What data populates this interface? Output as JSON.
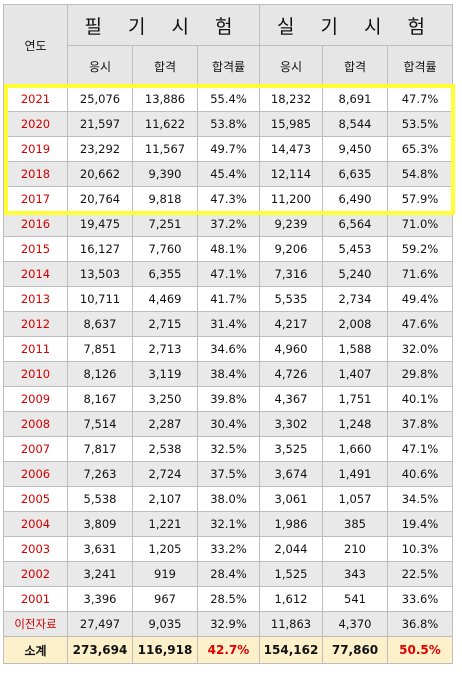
{
  "header": {
    "year": "연도",
    "written": "필 기 시 험",
    "practical": "실 기 시 험",
    "sub": [
      "응시",
      "합격",
      "합격률",
      "응시",
      "합격",
      "합격률"
    ]
  },
  "rows": [
    {
      "year": "2021",
      "w_apply": "25,076",
      "w_pass": "13,886",
      "w_rate": "55.4%",
      "p_apply": "18,232",
      "p_pass": "8,691",
      "p_rate": "47.7%"
    },
    {
      "year": "2020",
      "w_apply": "21,597",
      "w_pass": "11,622",
      "w_rate": "53.8%",
      "p_apply": "15,985",
      "p_pass": "8,544",
      "p_rate": "53.5%"
    },
    {
      "year": "2019",
      "w_apply": "23,292",
      "w_pass": "11,567",
      "w_rate": "49.7%",
      "p_apply": "14,473",
      "p_pass": "9,450",
      "p_rate": "65.3%"
    },
    {
      "year": "2018",
      "w_apply": "20,662",
      "w_pass": "9,390",
      "w_rate": "45.4%",
      "p_apply": "12,114",
      "p_pass": "6,635",
      "p_rate": "54.8%"
    },
    {
      "year": "2017",
      "w_apply": "20,764",
      "w_pass": "9,818",
      "w_rate": "47.3%",
      "p_apply": "11,200",
      "p_pass": "6,490",
      "p_rate": "57.9%"
    },
    {
      "year": "2016",
      "w_apply": "19,475",
      "w_pass": "7,251",
      "w_rate": "37.2%",
      "p_apply": "9,239",
      "p_pass": "6,564",
      "p_rate": "71.0%"
    },
    {
      "year": "2015",
      "w_apply": "16,127",
      "w_pass": "7,760",
      "w_rate": "48.1%",
      "p_apply": "9,206",
      "p_pass": "5,453",
      "p_rate": "59.2%"
    },
    {
      "year": "2014",
      "w_apply": "13,503",
      "w_pass": "6,355",
      "w_rate": "47.1%",
      "p_apply": "7,316",
      "p_pass": "5,240",
      "p_rate": "71.6%"
    },
    {
      "year": "2013",
      "w_apply": "10,711",
      "w_pass": "4,469",
      "w_rate": "41.7%",
      "p_apply": "5,535",
      "p_pass": "2,734",
      "p_rate": "49.4%"
    },
    {
      "year": "2012",
      "w_apply": "8,637",
      "w_pass": "2,715",
      "w_rate": "31.4%",
      "p_apply": "4,217",
      "p_pass": "2,008",
      "p_rate": "47.6%"
    },
    {
      "year": "2011",
      "w_apply": "7,851",
      "w_pass": "2,713",
      "w_rate": "34.6%",
      "p_apply": "4,960",
      "p_pass": "1,588",
      "p_rate": "32.0%"
    },
    {
      "year": "2010",
      "w_apply": "8,126",
      "w_pass": "3,119",
      "w_rate": "38.4%",
      "p_apply": "4,726",
      "p_pass": "1,407",
      "p_rate": "29.8%"
    },
    {
      "year": "2009",
      "w_apply": "8,167",
      "w_pass": "3,250",
      "w_rate": "39.8%",
      "p_apply": "4,367",
      "p_pass": "1,751",
      "p_rate": "40.1%"
    },
    {
      "year": "2008",
      "w_apply": "7,514",
      "w_pass": "2,287",
      "w_rate": "30.4%",
      "p_apply": "3,302",
      "p_pass": "1,248",
      "p_rate": "37.8%"
    },
    {
      "year": "2007",
      "w_apply": "7,817",
      "w_pass": "2,538",
      "w_rate": "32.5%",
      "p_apply": "3,525",
      "p_pass": "1,660",
      "p_rate": "47.1%"
    },
    {
      "year": "2006",
      "w_apply": "7,263",
      "w_pass": "2,724",
      "w_rate": "37.5%",
      "p_apply": "3,674",
      "p_pass": "1,491",
      "p_rate": "40.6%"
    },
    {
      "year": "2005",
      "w_apply": "5,538",
      "w_pass": "2,107",
      "w_rate": "38.0%",
      "p_apply": "3,061",
      "p_pass": "1,057",
      "p_rate": "34.5%"
    },
    {
      "year": "2004",
      "w_apply": "3,809",
      "w_pass": "1,221",
      "w_rate": "32.1%",
      "p_apply": "1,986",
      "p_pass": "385",
      "p_rate": "19.4%"
    },
    {
      "year": "2003",
      "w_apply": "3,631",
      "w_pass": "1,205",
      "w_rate": "33.2%",
      "p_apply": "2,044",
      "p_pass": "210",
      "p_rate": "10.3%"
    },
    {
      "year": "2002",
      "w_apply": "3,241",
      "w_pass": "919",
      "w_rate": "28.4%",
      "p_apply": "1,525",
      "p_pass": "343",
      "p_rate": "22.5%"
    },
    {
      "year": "2001",
      "w_apply": "3,396",
      "w_pass": "967",
      "w_rate": "28.5%",
      "p_apply": "1,612",
      "p_pass": "541",
      "p_rate": "33.6%"
    },
    {
      "year": "이전자료",
      "w_apply": "27,497",
      "w_pass": "9,035",
      "w_rate": "32.9%",
      "p_apply": "11,863",
      "p_pass": "4,370",
      "p_rate": "36.8%"
    }
  ],
  "total": {
    "year": "소계",
    "w_apply": "273,694",
    "w_pass": "116,918",
    "w_rate": "42.7%",
    "p_apply": "154,162",
    "p_pass": "77,860",
    "p_rate": "50.5%"
  },
  "colors": {
    "year_text": "#d40000",
    "highlight_border": "#ffff33",
    "total_bg": "#fdf1cc",
    "header_bg": "#e6e6e6"
  }
}
